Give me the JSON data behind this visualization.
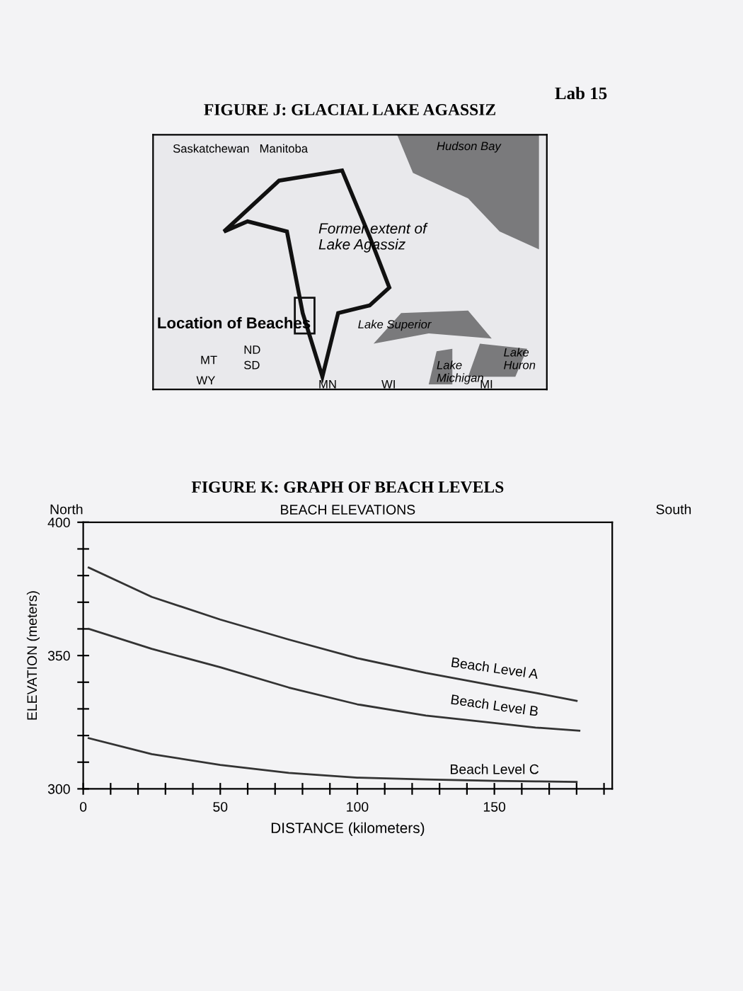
{
  "chart_data": [
    {
      "type": "other",
      "title": "FIGURE J: GLACIAL LAKE AGASSIZ",
      "annotations": [
        "Lab 15",
        "Saskatchewan",
        "Manitoba",
        "Hudson Bay",
        "Former extent of\nLake Agassiz",
        "Location of Beaches",
        "Lake Superior",
        "ND",
        "MT",
        "SD",
        "WY",
        "MN",
        "WI",
        "Lake\nMichigan",
        "Lake\nHuron",
        "MI"
      ]
    },
    {
      "type": "line",
      "title": "FIGURE K: GRAPH OF BEACH LEVELS",
      "subtitle": "BEACH ELEVATIONS",
      "xlabel": "DISTANCE (kilometers)",
      "ylabel": "ELEVATION (meters)",
      "annotations": [
        "North",
        "South"
      ],
      "xlim": [
        0,
        193
      ],
      "ylim": [
        300,
        400
      ],
      "xticks": [
        0,
        {
          "value": 10,
          "label": null
        },
        {
          "value": 20,
          "label": null
        },
        {
          "value": 30,
          "label": null
        },
        {
          "value": 40,
          "label": null
        },
        50,
        {
          "value": 60,
          "label": null
        },
        {
          "value": 70,
          "label": null
        },
        {
          "value": 80,
          "label": null
        },
        {
          "value": 90,
          "label": null
        },
        100,
        {
          "value": 110,
          "label": null
        },
        {
          "value": 120,
          "label": null
        },
        {
          "value": 130,
          "label": null
        },
        {
          "value": 140,
          "label": null
        },
        150,
        {
          "value": 160,
          "label": null
        },
        {
          "value": 170,
          "label": null
        },
        {
          "value": 180,
          "label": null
        },
        {
          "value": 190,
          "label": null
        }
      ],
      "yticks": [
        300,
        {
          "value": 310,
          "label": null
        },
        {
          "value": 320,
          "label": null
        },
        {
          "value": 330,
          "label": null
        },
        {
          "value": 340,
          "label": null
        },
        350,
        {
          "value": 360,
          "label": null
        },
        {
          "value": 370,
          "label": null
        },
        {
          "value": 380,
          "label": null
        },
        {
          "value": 390,
          "label": null
        },
        400
      ],
      "grid": false,
      "legend": false,
      "marker": "none",
      "line_style": "solid",
      "series": [
        {
          "name": "Beach Level A",
          "color": "#333333",
          "x": [
            2,
            25,
            50,
            75,
            100,
            125,
            150,
            165,
            180
          ],
          "values": [
            383,
            372,
            363.5,
            356,
            349,
            343.5,
            338.7,
            336,
            333
          ]
        },
        {
          "name": "Beach Level B",
          "color": "#333333",
          "x": [
            2,
            25,
            50,
            75,
            100,
            125,
            150,
            165,
            181
          ],
          "values": [
            360,
            352.5,
            345.6,
            338,
            331.7,
            327.5,
            324.7,
            323,
            321.8
          ]
        },
        {
          "name": "Beach Level C",
          "color": "#333333",
          "x": [
            2,
            25,
            50,
            75,
            100,
            125,
            150,
            165,
            180
          ],
          "values": [
            319,
            313,
            309,
            306,
            304.2,
            303.5,
            303,
            302.8,
            302.6
          ]
        }
      ]
    }
  ]
}
